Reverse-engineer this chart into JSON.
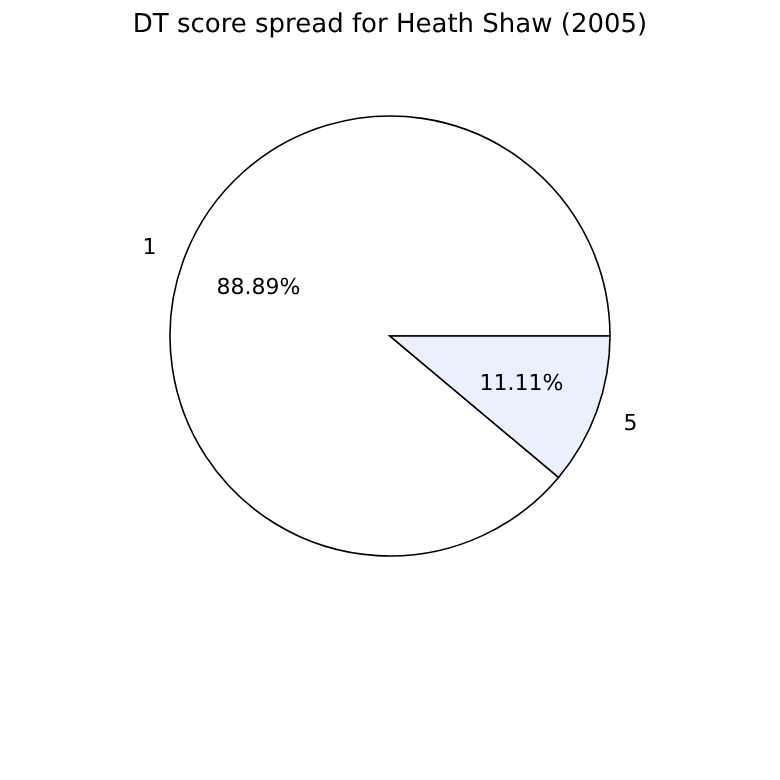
{
  "chart_data": {
    "type": "pie",
    "title": "DT score spread for Heath Shaw (2005)",
    "categories": [
      "1",
      "5"
    ],
    "values": [
      88.89,
      11.11
    ],
    "colors": [
      "#ffffff",
      "#eaf0fc"
    ],
    "value_labels": [
      "88.89%",
      "11.11%"
    ],
    "legend": false
  }
}
